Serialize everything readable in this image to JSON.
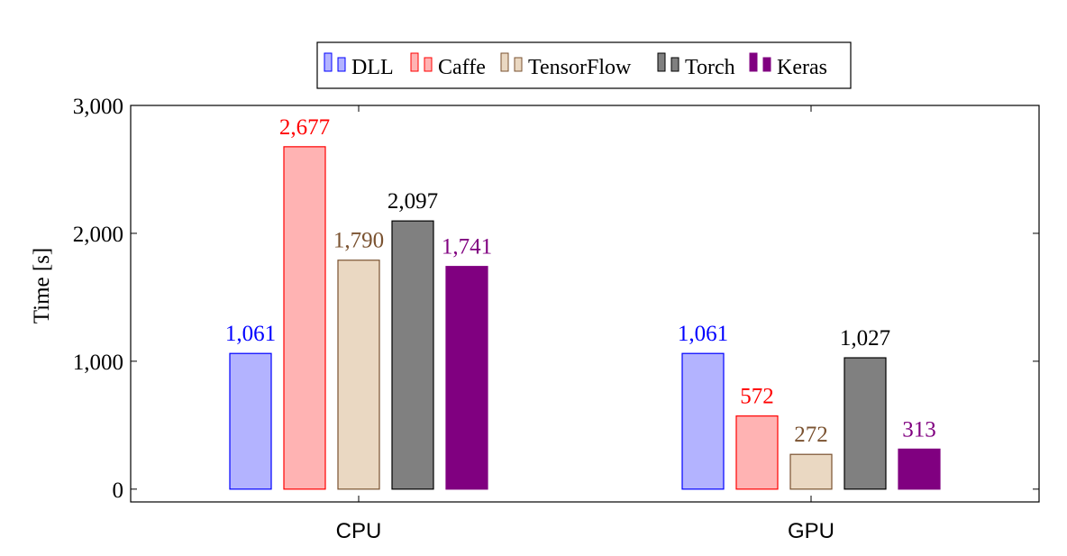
{
  "chart_data": {
    "type": "bar",
    "title": "",
    "xlabel": "",
    "ylabel": "Time [s]",
    "categories": [
      "CPU",
      "GPU"
    ],
    "ylim": [
      -100,
      3000
    ],
    "yticks": [
      0,
      1000,
      2000,
      3000
    ],
    "ytick_labels": [
      "0",
      "1,000",
      "2,000",
      "3,000"
    ],
    "grid": false,
    "legend_position": "top-center",
    "series": [
      {
        "name": "DLL",
        "values": [
          1061,
          1061
        ],
        "labels": [
          "1,061",
          "1,061"
        ],
        "fill": "#b3b3ff",
        "stroke": "#0000ff",
        "label_color": "#0000ff"
      },
      {
        "name": "Caffe",
        "values": [
          2677,
          572
        ],
        "labels": [
          "2,677",
          "572"
        ],
        "fill": "#ffb3b3",
        "stroke": "#ff0000",
        "label_color": "#ff0000"
      },
      {
        "name": "TensorFlow",
        "values": [
          1790,
          272
        ],
        "labels": [
          "1,790",
          "272"
        ],
        "fill": "#ead8c2",
        "stroke": "#7a5230",
        "label_color": "#7a5230"
      },
      {
        "name": "Torch",
        "values": [
          2097,
          1027
        ],
        "labels": [
          "2,097",
          "1,027"
        ],
        "fill": "#808080",
        "stroke": "#000000",
        "label_color": "#000000"
      },
      {
        "name": "Keras",
        "values": [
          1741,
          313
        ],
        "labels": [
          "1,741",
          "313"
        ],
        "fill": "#800080",
        "stroke": "#800080",
        "label_color": "#800080"
      }
    ]
  }
}
